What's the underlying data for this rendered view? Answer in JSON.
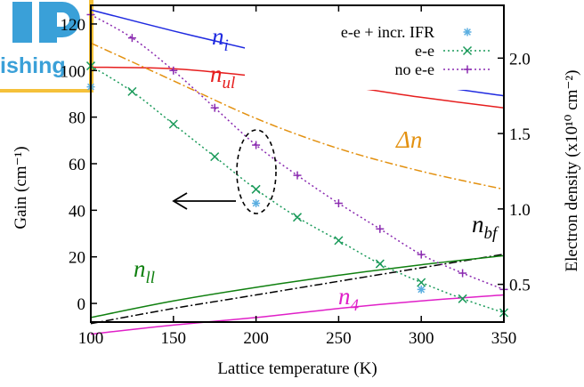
{
  "logo": {
    "text": "ishing"
  },
  "chart_data": {
    "type": "line",
    "xlabel": "Lattice temperature (K)",
    "ylabel_left": "Gain (cm⁻¹)",
    "ylabel_right": "Electron density (x10¹⁰ cm⁻²)",
    "xlim": [
      100,
      350
    ],
    "ylim_left": [
      -8,
      128
    ],
    "ylim_right": [
      0.25,
      2.35
    ],
    "xticks": [
      "100",
      "150",
      "200",
      "250",
      "300",
      "350"
    ],
    "yticks_left": [
      "0",
      "20",
      "40",
      "60",
      "80",
      "100",
      "120"
    ],
    "yticks_right": [
      "0.5",
      "1.0",
      "1.5",
      "2.0"
    ],
    "legend_position": "top-right",
    "legend": [
      {
        "label": "e-e + incr. IFR",
        "color": "#5aaee0",
        "marker": "*"
      },
      {
        "label": "e-e",
        "color": "#1a9a5a",
        "marker": "x"
      },
      {
        "label": "no e-e",
        "color": "#8a2ab0",
        "marker": "+"
      }
    ],
    "annotations": [
      {
        "base": "n",
        "sub": "i",
        "color": "#1f2ae0"
      },
      {
        "base": "n",
        "sub": "ul",
        "color": "#e61e1e"
      },
      {
        "base": "Δn",
        "sub": "",
        "color": "#e39110"
      },
      {
        "base": "n",
        "sub": "bf",
        "color": "#000000"
      },
      {
        "base": "n",
        "sub": "ll",
        "color": "#108010"
      },
      {
        "base": "n",
        "sub": "4",
        "color": "#e020c8"
      }
    ],
    "gain_series": [
      {
        "name": "e-e + incr. IFR",
        "color": "#5aaee0",
        "marker": "*",
        "x": [
          100,
          200,
          300
        ],
        "y": [
          93,
          43,
          6
        ]
      },
      {
        "name": "e-e",
        "color": "#1a9a5a",
        "marker": "x",
        "x": [
          100,
          125,
          150,
          175,
          200,
          225,
          250,
          275,
          300,
          325,
          350
        ],
        "y": [
          102,
          91,
          77,
          63,
          49,
          37,
          27,
          17,
          9,
          2,
          -4
        ]
      },
      {
        "name": "no e-e",
        "color": "#8a2ab0",
        "marker": "+",
        "x": [
          100,
          125,
          150,
          175,
          200,
          225,
          250,
          275,
          300,
          325,
          350
        ],
        "y": [
          124,
          114,
          100,
          84,
          68,
          55,
          43,
          32,
          21,
          13,
          6
        ]
      }
    ],
    "density_series": [
      {
        "name": "n_i",
        "color": "#1f2ae0",
        "style": "solid",
        "x": [
          100,
          150,
          200,
          250,
          300,
          350
        ],
        "y": [
          2.32,
          2.18,
          2.05,
          1.93,
          1.83,
          1.75
        ]
      },
      {
        "name": "n_ul",
        "color": "#e61e1e",
        "style": "solid",
        "x": [
          100,
          150,
          200,
          250,
          300,
          350
        ],
        "y": [
          1.94,
          1.93,
          1.88,
          1.82,
          1.74,
          1.67
        ]
      },
      {
        "name": "Δn",
        "color": "#e39110",
        "style": "dashdot",
        "x": [
          100,
          150,
          200,
          250,
          300,
          350
        ],
        "y": [
          2.1,
          1.85,
          1.6,
          1.4,
          1.25,
          1.13
        ]
      },
      {
        "name": "n_bf",
        "color": "#000000",
        "style": "dashdot",
        "x": [
          100,
          150,
          200,
          250,
          300,
          350
        ],
        "y": [
          0.24,
          0.34,
          0.43,
          0.52,
          0.61,
          0.7
        ]
      },
      {
        "name": "n_ll",
        "color": "#108010",
        "style": "solid",
        "x": [
          100,
          150,
          200,
          250,
          300,
          350
        ],
        "y": [
          0.28,
          0.39,
          0.48,
          0.56,
          0.63,
          0.69
        ]
      },
      {
        "name": "n_4",
        "color": "#e020c8",
        "style": "solid",
        "x": [
          100,
          150,
          200,
          250,
          300,
          350
        ],
        "y": [
          0.17,
          0.23,
          0.28,
          0.34,
          0.39,
          0.43
        ]
      }
    ]
  }
}
